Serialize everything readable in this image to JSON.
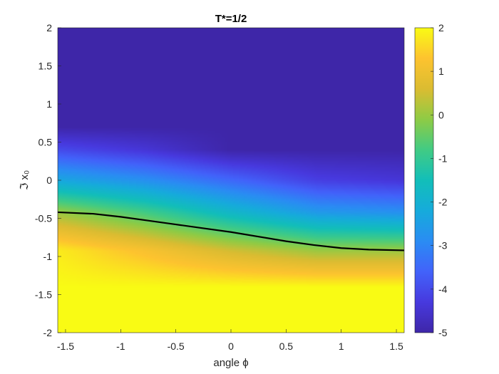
{
  "chart_data": {
    "type": "heatmap",
    "title": "T*=1/2",
    "xlabel": "angle ϕ",
    "ylabel": "ℑ x₀",
    "xlim": [
      -1.5708,
      1.5708
    ],
    "ylim": [
      -2,
      2
    ],
    "x_ticks": [
      -1.5,
      -1,
      -0.5,
      0,
      0.5,
      1,
      1.5
    ],
    "x_tick_labels": [
      "-1.5",
      "-1",
      "-0.5",
      "0",
      "0.5",
      "1",
      "1.5"
    ],
    "y_ticks": [
      -2,
      -1.5,
      -1,
      -0.5,
      0,
      0.5,
      1,
      1.5,
      2
    ],
    "y_tick_labels": [
      "-2",
      "-1.5",
      "-1",
      "-0.5",
      "0",
      "0.5",
      "1",
      "1.5",
      "2"
    ],
    "colormap": "parula",
    "colorbar": {
      "lim": [
        -5,
        2
      ],
      "ticks": [
        -5,
        -4,
        -3,
        -2,
        -1,
        0,
        1,
        2
      ],
      "tick_labels": [
        "-5",
        "-4",
        "-3",
        "-2",
        "-1",
        "0",
        "1",
        "2"
      ]
    },
    "contour_line": {
      "color": "#000000",
      "x": [
        -1.5708,
        -1.25,
        -1.0,
        -0.75,
        -0.5,
        -0.25,
        0.0,
        0.25,
        0.5,
        0.75,
        1.0,
        1.25,
        1.5708
      ],
      "y": [
        -0.42,
        -0.44,
        -0.48,
        -0.53,
        -0.58,
        -0.63,
        -0.68,
        -0.74,
        -0.8,
        -0.85,
        -0.89,
        -0.91,
        -0.92
      ]
    },
    "field_profile": {
      "x": [
        -1.5708,
        -0.7854,
        0.0,
        0.7854,
        1.5708
      ],
      "value_at": [
        {
          "y": 0.7,
          "v": [
            -5,
            -5,
            -5,
            -5,
            -5
          ]
        },
        {
          "y": 0.4,
          "v": [
            -4.0,
            -4.4,
            -5.0,
            -5.0,
            -5.0
          ]
        },
        {
          "y": 0.0,
          "v": [
            -2.3,
            -2.8,
            -3.5,
            -4.2,
            -4.4
          ]
        },
        {
          "y": -0.42,
          "v": [
            0.0,
            -0.8,
            -1.8,
            -2.6,
            -2.8
          ]
        },
        {
          "y": -0.92,
          "v": [
            1.8,
            1.2,
            0.5,
            0.0,
            0.0
          ]
        },
        {
          "y": -1.4,
          "v": [
            2,
            2,
            2,
            2,
            2
          ]
        }
      ]
    },
    "grid": false,
    "legend": "none"
  }
}
